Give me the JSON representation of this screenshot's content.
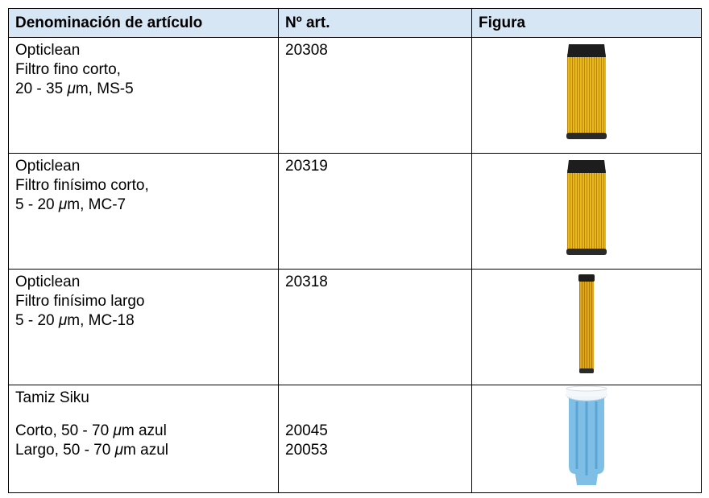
{
  "table": {
    "header": [
      "Denominación de artículo",
      "Nº art.",
      "Figura"
    ],
    "rows": [
      {
        "name": [
          "Opticlean",
          "Filtro fino corto,",
          "20 - 35 μm, MS-5"
        ],
        "number": [
          "20308"
        ]
      },
      {
        "name": [
          "Opticlean",
          "Filtro finísimo corto,",
          "5 - 20 μm, MC-7"
        ],
        "number": [
          "20319"
        ]
      },
      {
        "name": [
          "Opticlean",
          "Filtro finísimo largo",
          "5 - 20 μm, MC-18"
        ],
        "number": [
          "20318"
        ]
      },
      {
        "name": [
          "Tamiz Siku",
          "Corto, 50 - 70 μm azul",
          "Largo, 50 - 70 μm azul"
        ],
        "number": [
          "20045",
          "20053"
        ]
      }
    ]
  }
}
